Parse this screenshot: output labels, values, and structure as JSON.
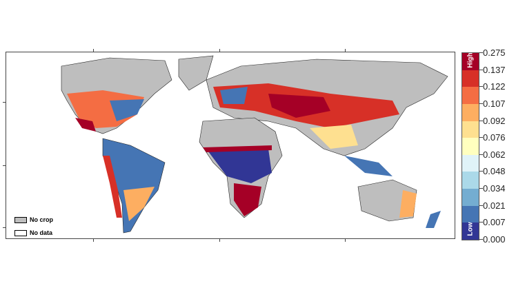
{
  "legend": {
    "high_label": "High",
    "low_label": "Low",
    "breaks": [
      "0.275",
      "0.137",
      "0.122",
      "0.107",
      "0.092",
      "0.076",
      "0.062",
      "0.048",
      "0.034",
      "0.021",
      "0.007",
      "0.000"
    ],
    "colors": [
      "#a50026",
      "#d73027",
      "#f46d43",
      "#fdae61",
      "#fee090",
      "#ffffbf",
      "#e0f3f8",
      "#abd9e9",
      "#74add1",
      "#4575b4",
      "#313695"
    ],
    "no_crop": {
      "label": "No crop",
      "color": "#bebebe"
    },
    "no_data": {
      "label": "No data",
      "color": "#ffffff"
    }
  }
}
